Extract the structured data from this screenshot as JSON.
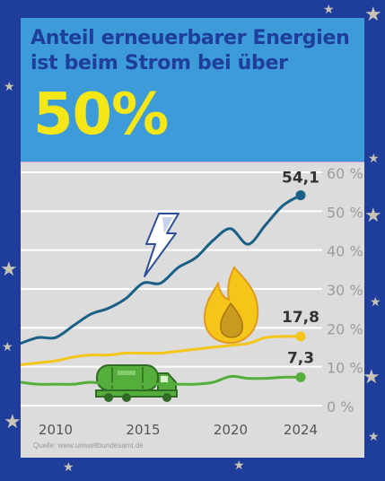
{
  "header": {
    "headline_line1": "Anteil erneuerbarer Energien",
    "headline_line2": "ist beim Strom bei über",
    "big_value": "50%"
  },
  "source": "Quelle: www.umweltbundesamt.de",
  "colors": {
    "background": "#1f3d9a",
    "header": "#3e9bd9",
    "headline": "#1f3d9a",
    "big_value": "#f4e617",
    "chart_bg": "#dcdcdc",
    "electricity": "#1a5f86",
    "heat": "#f6c51a",
    "transport": "#55ad3c",
    "grid": "#ffffff",
    "tick_text": "#9c9c9c",
    "x_text": "#555555"
  },
  "icons": [
    "lightning-icon",
    "flame-icon",
    "tanker-truck-icon"
  ],
  "chart_data": {
    "type": "line",
    "x": [
      2008,
      2009,
      2010,
      2011,
      2012,
      2013,
      2014,
      2015,
      2016,
      2017,
      2018,
      2019,
      2020,
      2021,
      2022,
      2023,
      2024
    ],
    "xticks": [
      "2010",
      "2015",
      "2020",
      "2024"
    ],
    "yticks": [
      "0 %",
      "10 %",
      "20 %",
      "30 %",
      "40 %",
      "50 %",
      "60 %"
    ],
    "ylim": [
      0,
      60
    ],
    "xlim": [
      2008,
      2024
    ],
    "grid": true,
    "series": [
      {
        "values": [
          16,
          17.5,
          17.5,
          20.5,
          23.5,
          25,
          27.5,
          31.5,
          31.5,
          35.5,
          38,
          42.5,
          45.5,
          41.5,
          46.5,
          51.5,
          54.1
        ],
        "end_label": "54,1"
      },
      {
        "values": [
          10.5,
          11,
          11.5,
          12.5,
          13,
          13,
          13.5,
          13.5,
          13.5,
          14,
          14.5,
          15,
          15.5,
          16,
          17.5,
          17.8,
          17.8
        ],
        "end_label": "17,8"
      },
      {
        "values": [
          6,
          5.5,
          5.5,
          5.5,
          6,
          5.5,
          5.5,
          5.5,
          5.5,
          5.5,
          5.5,
          6,
          7.5,
          7,
          7,
          7.3,
          7.3
        ],
        "end_label": "7,3"
      }
    ]
  }
}
